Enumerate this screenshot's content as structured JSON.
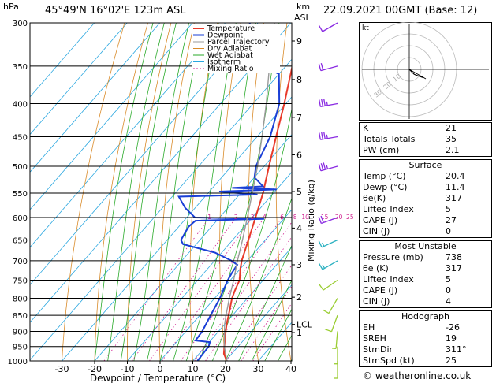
{
  "header": {
    "location": "45°49'N  16°02'E  123m  ASL",
    "datetime": "22.09.2021  00GMT  (Base: 12)",
    "pressure_unit": "hPa",
    "height_unit_line1": "km",
    "height_unit_line2": "ASL"
  },
  "colors": {
    "temperature": "#e83a2a",
    "dewpoint": "#1a3fd6",
    "parcel": "#9a9a9a",
    "dry_adiabat": "#d98b2a",
    "wet_adiabat": "#2aaa2a",
    "isotherm": "#2aa7e0",
    "mixing_ratio": "#d02090",
    "wind": "#8a2be2"
  },
  "chart_data": {
    "type": "line",
    "title": "Skew-T log-P diagram",
    "xlabel": "Dewpoint / Temperature (°C)",
    "ylabel": "hPa",
    "right_ylabel": "Mixing Ratio (g/kg)",
    "xlim": [
      -40,
      40
    ],
    "ylim": [
      1000,
      300
    ],
    "x_ticks": [
      "-30",
      "-20",
      "-10",
      "0",
      "10",
      "20",
      "30",
      "40"
    ],
    "pressure_levels": [
      300,
      350,
      400,
      450,
      500,
      550,
      600,
      650,
      700,
      750,
      800,
      850,
      900,
      950,
      1000
    ],
    "height_ticks": [
      {
        "label": "9",
        "p": 320
      },
      {
        "label": "8",
        "p": 367
      },
      {
        "label": "7",
        "p": 420
      },
      {
        "label": "6",
        "p": 480
      },
      {
        "label": "5",
        "p": 547
      },
      {
        "label": "4",
        "p": 623
      },
      {
        "label": "3",
        "p": 710
      },
      {
        "label": "2",
        "p": 797
      },
      {
        "label": "LCL",
        "p": 878
      },
      {
        "label": "1",
        "p": 904
      }
    ],
    "mixing_ratio_labels": [
      "1",
      "2",
      "3",
      "4",
      "6",
      "8",
      "10",
      "15",
      "20",
      "25"
    ],
    "mixing_ratio_values": [
      1,
      2,
      3,
      4,
      6,
      8,
      10,
      15,
      20,
      25
    ],
    "legend": [
      "Temperature",
      "Dewpoint",
      "Parcel Trajectory",
      "Dry Adiabat",
      "Wet Adiabat",
      "Isotherm",
      "Mixing Ratio"
    ],
    "series": [
      {
        "name": "Temperature",
        "points": [
          [
            1000,
            20.4
          ],
          [
            975,
            17.6
          ],
          [
            950,
            15.8
          ],
          [
            925,
            14.0
          ],
          [
            900,
            12.2
          ],
          [
            875,
            10.4
          ],
          [
            850,
            8.8
          ],
          [
            800,
            5.3
          ],
          [
            780,
            4.2
          ],
          [
            750,
            2.8
          ],
          [
            720,
            0.0
          ],
          [
            700,
            -1.7
          ],
          [
            650,
            -5.2
          ],
          [
            600,
            -9.0
          ],
          [
            550,
            -13.2
          ],
          [
            500,
            -18.5
          ],
          [
            450,
            -24.2
          ],
          [
            400,
            -30.5
          ],
          [
            350,
            -38.0
          ],
          [
            320,
            -43.0
          ],
          [
            300,
            -46.5
          ]
        ]
      },
      {
        "name": "Dewpoint",
        "points": [
          [
            1000,
            11.4
          ],
          [
            950,
            11.0
          ],
          [
            935,
            10.2
          ],
          [
            930,
            5.4
          ],
          [
            900,
            5.0
          ],
          [
            850,
            3.3
          ],
          [
            800,
            1.6
          ],
          [
            750,
            -0.8
          ],
          [
            730,
            -1.5
          ],
          [
            710,
            -2.0
          ],
          [
            700,
            -4.8
          ],
          [
            680,
            -12.0
          ],
          [
            660,
            -24.0
          ],
          [
            650,
            -25.8
          ],
          [
            620,
            -27.0
          ],
          [
            607,
            -26.5
          ],
          [
            603,
            -6.0
          ],
          [
            600,
            -27.5
          ],
          [
            580,
            -33.0
          ],
          [
            557,
            -38.0
          ],
          [
            553,
            -14.5
          ],
          [
            547,
            -27.0
          ],
          [
            543,
            -10.0
          ],
          [
            540,
            -24.0
          ],
          [
            537,
            -15.0
          ],
          [
            520,
            -20.0
          ],
          [
            500,
            -22.5
          ],
          [
            450,
            -26.0
          ],
          [
            400,
            -32.0
          ],
          [
            360,
            -40.0
          ],
          [
            345,
            -50.0
          ],
          [
            320,
            -58.5
          ],
          [
            305,
            -61.5
          ],
          [
            300,
            -62.5
          ]
        ]
      },
      {
        "name": "Parcel Trajectory",
        "points": [
          [
            1000,
            20.4
          ],
          [
            950,
            15.8
          ],
          [
            878,
            10.0
          ],
          [
            850,
            8.0
          ],
          [
            800,
            4.5
          ],
          [
            750,
            1.0
          ],
          [
            700,
            -3.0
          ],
          [
            650,
            -7.0
          ],
          [
            600,
            -11.5
          ],
          [
            550,
            -16.5
          ],
          [
            500,
            -22.0
          ],
          [
            450,
            -28.5
          ],
          [
            400,
            -36.0
          ],
          [
            350,
            -45.0
          ],
          [
            300,
            -55.0
          ]
        ]
      }
    ],
    "wind_barbs": [
      {
        "p": 1000,
        "dir": 180,
        "kt": 5
      },
      {
        "p": 950,
        "dir": 180,
        "kt": 5
      },
      {
        "p": 900,
        "dir": 185,
        "kt": 5
      },
      {
        "p": 850,
        "dir": 200,
        "kt": 10
      },
      {
        "p": 800,
        "dir": 210,
        "kt": 10
      },
      {
        "p": 750,
        "dir": 235,
        "kt": 10
      },
      {
        "p": 700,
        "dir": 240,
        "kt": 15
      },
      {
        "p": 650,
        "dir": 245,
        "kt": 15
      },
      {
        "p": 600,
        "dir": 250,
        "kt": 20
      },
      {
        "p": 500,
        "dir": 255,
        "kt": 35
      },
      {
        "p": 450,
        "dir": 260,
        "kt": 35
      },
      {
        "p": 400,
        "dir": 260,
        "kt": 35
      },
      {
        "p": 350,
        "dir": 255,
        "kt": 20
      },
      {
        "p": 300,
        "dir": 240,
        "kt": 10
      }
    ],
    "hodograph": {
      "unit_label": "kt",
      "ring_labels": [
        "10",
        "20",
        "30"
      ],
      "trace": [
        [
          0,
          0
        ],
        [
          2,
          -2
        ],
        [
          4,
          -4
        ],
        [
          6,
          -5
        ],
        [
          9,
          -6
        ],
        [
          12,
          -7
        ]
      ],
      "storm_motion": [
        7,
        -4
      ]
    }
  },
  "indices": {
    "rows": [
      {
        "label": "K",
        "value": "21"
      },
      {
        "label": "Totals Totals",
        "value": "35"
      },
      {
        "label": "PW (cm)",
        "value": "2.1"
      }
    ]
  },
  "surface": {
    "title": "Surface",
    "rows": [
      {
        "label": "Temp (°C)",
        "value": "20.4"
      },
      {
        "label": "Dewp (°C)",
        "value": "11.4"
      },
      {
        "label": "θe(K)",
        "value": "317"
      },
      {
        "label": "Lifted Index",
        "value": "5"
      },
      {
        "label": "CAPE (J)",
        "value": "27"
      },
      {
        "label": "CIN (J)",
        "value": "0"
      }
    ]
  },
  "most_unstable": {
    "title": "Most Unstable",
    "rows": [
      {
        "label": "Pressure (mb)",
        "value": "738"
      },
      {
        "label": "θe (K)",
        "value": "317"
      },
      {
        "label": "Lifted Index",
        "value": "5"
      },
      {
        "label": "CAPE (J)",
        "value": "0"
      },
      {
        "label": "CIN (J)",
        "value": "4"
      }
    ]
  },
  "hodograph_table": {
    "title": "Hodograph",
    "rows": [
      {
        "label": "EH",
        "value": "-26"
      },
      {
        "label": "SREH",
        "value": "19"
      },
      {
        "label": "StmDir",
        "value": "311°"
      },
      {
        "label": "StmSpd (kt)",
        "value": "25"
      }
    ]
  },
  "credit": "© weatheronline.co.uk"
}
